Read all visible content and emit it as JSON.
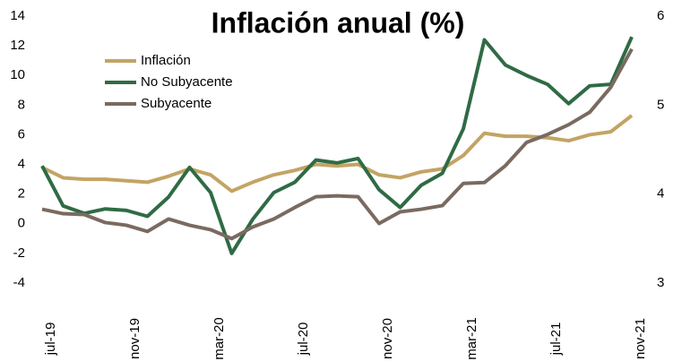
{
  "chart_data": {
    "type": "line",
    "title": "Inflación anual (%)",
    "categories": [
      "jul-19",
      null,
      null,
      null,
      "nov-19",
      null,
      null,
      null,
      "mar-20",
      null,
      null,
      null,
      "jul-20",
      null,
      null,
      null,
      "nov-20",
      null,
      null,
      null,
      "mar-21",
      null,
      null,
      null,
      "jul-21",
      null,
      null,
      null,
      "nov-21"
    ],
    "series": [
      {
        "name": "Inflación",
        "color": "#c3a464",
        "values": [
          3.8,
          3.1,
          3.0,
          3.0,
          2.9,
          2.8,
          3.2,
          3.7,
          3.3,
          2.2,
          2.8,
          3.3,
          3.6,
          4.0,
          3.9,
          4.0,
          3.3,
          3.1,
          3.5,
          3.7,
          4.6,
          6.1,
          5.9,
          5.9,
          5.8,
          5.6,
          6.0,
          6.2,
          7.3
        ]
      },
      {
        "name": "No Subyacente",
        "color": "#2f6b45",
        "values": [
          3.9,
          1.2,
          0.7,
          1.0,
          0.9,
          0.5,
          1.8,
          3.8,
          2.1,
          -2.0,
          0.3,
          2.1,
          2.8,
          4.3,
          4.1,
          4.4,
          2.3,
          1.1,
          2.6,
          3.4,
          6.4,
          12.4,
          10.7,
          10.0,
          9.4,
          8.1,
          9.3,
          9.4,
          12.6
        ]
      },
      {
        "name": "Subyacente",
        "color": "#7a6a60",
        "axis": "y2",
        "values": [
          3.83,
          3.78,
          3.77,
          3.68,
          3.65,
          3.58,
          3.72,
          3.65,
          3.6,
          3.5,
          3.63,
          3.72,
          3.85,
          3.97,
          3.98,
          3.97,
          3.67,
          3.8,
          3.83,
          3.87,
          4.12,
          4.13,
          4.32,
          4.58,
          4.67,
          4.78,
          4.92,
          5.2,
          5.63
        ]
      }
    ],
    "ylim": [
      -4,
      14
    ],
    "yticks": [
      -4,
      -2,
      0,
      2,
      4,
      6,
      8,
      10,
      12,
      14
    ],
    "y2lim": [
      3,
      6
    ],
    "y2ticks": [
      3,
      4,
      5,
      6
    ],
    "legend": "upper left",
    "grid": false
  }
}
